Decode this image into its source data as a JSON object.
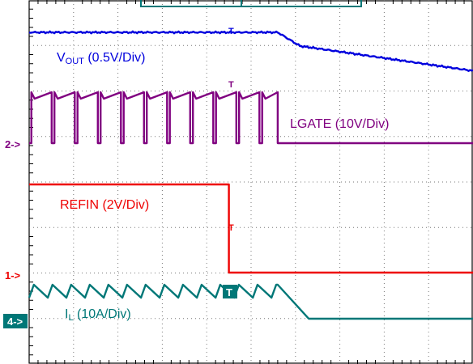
{
  "chart_data": {
    "type": "line",
    "title": "",
    "xlabel": "",
    "ylabel": "",
    "grid": true,
    "x_divisions": 10,
    "y_divisions": 8,
    "series": [
      {
        "name_main": "V",
        "name_sub": "OUT",
        "name_rest": " (0.5V/Div)",
        "color": "#0000dd",
        "points": [
          [
            0,
            0.5
          ],
          [
            5.6,
            0.5
          ],
          [
            6.1,
            0.2
          ],
          [
            10,
            -0.35
          ]
        ]
      },
      {
        "name_main": "LGATE (10V/Div)",
        "name_sub": "",
        "name_rest": "",
        "color": "#800080",
        "waveform": "switching",
        "marker": "2",
        "high": 1.2,
        "low": 0,
        "period": 0.52,
        "high_fraction": 0.88,
        "stop_x": 5.6
      },
      {
        "name_main": "REFIN (2V/Div)",
        "name_sub": "",
        "name_rest": "",
        "color": "#ee0000",
        "marker": "1",
        "points": [
          [
            0,
            2
          ],
          [
            4.5,
            2
          ],
          [
            4.5,
            0
          ],
          [
            10,
            0
          ]
        ]
      },
      {
        "name_main": "I",
        "name_sub": "L",
        "name_rest": " (10A/Div)",
        "color": "#007777",
        "marker": "4",
        "waveform": "ripple",
        "level": 0.65,
        "ripple": 0.22,
        "period": 0.42,
        "stop_x": 5.6,
        "end_x": 6.3,
        "final": 0
      }
    ],
    "trigger_marker": "T",
    "cursor_marker": "T"
  }
}
